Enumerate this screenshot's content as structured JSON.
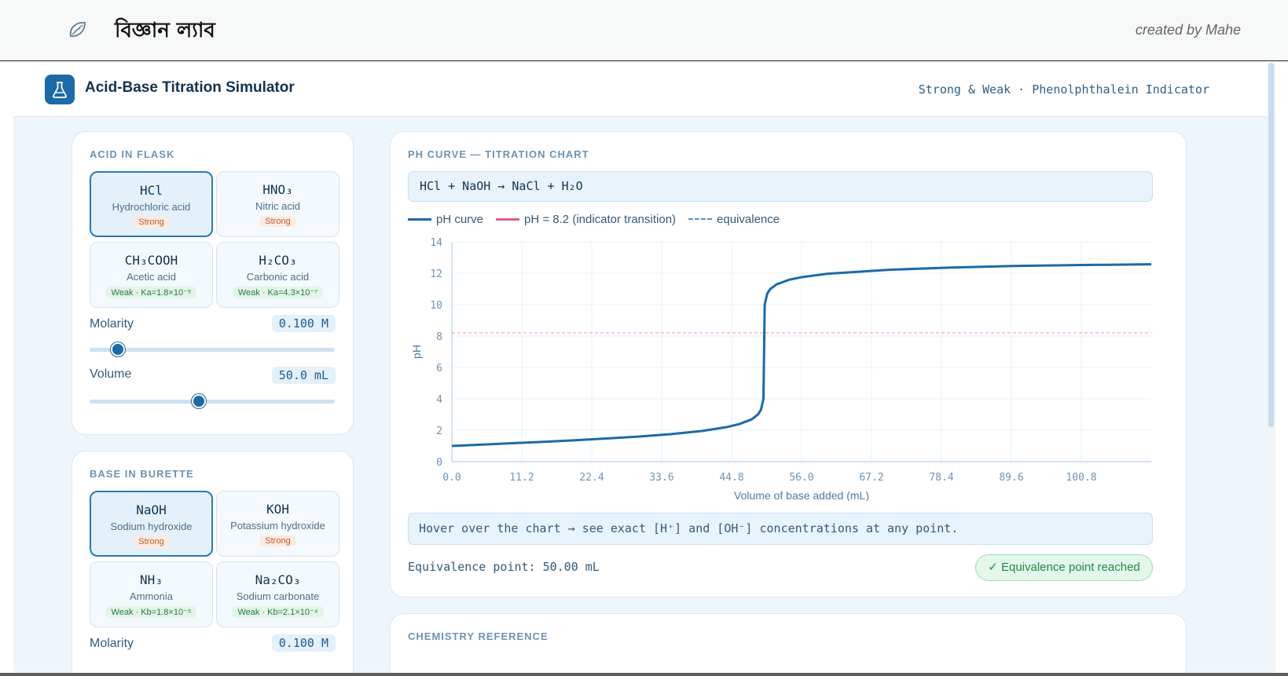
{
  "site": {
    "title": "বিজ্ঞান ল্যাব",
    "credit": "created by Mahe",
    "logo_icon": "leaf-swirl-icon"
  },
  "app": {
    "title": "Acid-Base Titration Simulator",
    "subtitle": "Strong & Weak · Phenolphthalein Indicator",
    "icon": "flask-icon",
    "accent": "#1d6aa6"
  },
  "acid_panel": {
    "label": "ACID IN FLASK",
    "options": [
      {
        "formula": "HCl",
        "name": "Hydrochloric acid",
        "badge": "Strong",
        "strength": "strong",
        "selected": true
      },
      {
        "formula": "HNO₃",
        "name": "Nitric acid",
        "badge": "Strong",
        "strength": "strong",
        "selected": false
      },
      {
        "formula": "CH₃COOH",
        "name": "Acetic acid",
        "badge": "Weak · Ka=1.8×10⁻⁵",
        "strength": "weak",
        "selected": false
      },
      {
        "formula": "H₂CO₃",
        "name": "Carbonic acid",
        "badge": "Weak · Ka=4.3×10⁻⁷",
        "strength": "weak",
        "selected": false
      }
    ],
    "molarity": {
      "label": "Molarity",
      "value": "0.100 M",
      "slider_fraction": 0.116
    },
    "volume": {
      "label": "Volume",
      "value": "50.0 mL",
      "slider_fraction": 0.445
    }
  },
  "base_panel": {
    "label": "BASE IN BURETTE",
    "options": [
      {
        "formula": "NaOH",
        "name": "Sodium hydroxide",
        "badge": "Strong",
        "strength": "strong",
        "selected": true
      },
      {
        "formula": "KOH",
        "name": "Potassium hydroxide",
        "badge": "Strong",
        "strength": "strong",
        "selected": false
      },
      {
        "formula": "NH₃",
        "name": "Ammonia",
        "badge": "Weak · Kb=1.8×10⁻⁵",
        "strength": "weak",
        "selected": false
      },
      {
        "formula": "Na₂CO₃",
        "name": "Sodium carbonate",
        "badge": "Weak · Kb=2.1×10⁻⁴",
        "strength": "weak",
        "selected": false
      }
    ],
    "molarity": {
      "label": "Molarity",
      "value": "0.100 M"
    }
  },
  "chart_panel": {
    "label": "PH CURVE — TITRATION CHART",
    "equation": "HCl + NaOH → NaCl + H₂O",
    "legend": [
      {
        "label": "pH curve",
        "color": "#1d6aa6",
        "style": "solid"
      },
      {
        "label": "pH = 8.2 (indicator transition)",
        "color": "#e45b86",
        "style": "solid"
      },
      {
        "label": "equivalence",
        "color": "#5b93c9",
        "style": "dashed"
      }
    ],
    "hint": "Hover over the chart → see exact [H⁺] and [OH⁻] concentrations at any point.",
    "equivalence_text": "Equivalence point: 50.00 mL",
    "equivalence_badge": "✓ Equivalence point reached"
  },
  "reference_panel": {
    "label": "CHEMISTRY REFERENCE"
  },
  "chart_data": {
    "type": "line",
    "xlabel": "Volume of base added (mL)",
    "ylabel": "pH",
    "xlim": [
      0,
      112
    ],
    "ylim": [
      0,
      14
    ],
    "xticks": [
      "0.0",
      "11.2",
      "22.4",
      "33.6",
      "44.8",
      "56.0",
      "67.2",
      "78.4",
      "89.6",
      "100.8"
    ],
    "yticks": [
      "0",
      "2",
      "4",
      "6",
      "8",
      "10",
      "12",
      "14"
    ],
    "indicator_ph": 8.2,
    "equivalence_ml": 50.0,
    "grid": true,
    "series": [
      {
        "name": "pH curve",
        "color": "#1d6aa6",
        "x": [
          0,
          5,
          10,
          15,
          20,
          25,
          30,
          35,
          40,
          44,
          46,
          48,
          49,
          49.5,
          49.9,
          50.0,
          50.1,
          50.5,
          51,
          52,
          54,
          56,
          60,
          70,
          80,
          90,
          100,
          112
        ],
        "y": [
          1.0,
          1.09,
          1.18,
          1.27,
          1.37,
          1.48,
          1.6,
          1.75,
          1.95,
          2.2,
          2.39,
          2.69,
          3.0,
          3.3,
          4.0,
          7.0,
          10.0,
          10.7,
          11.0,
          11.29,
          11.58,
          11.75,
          11.96,
          12.22,
          12.36,
          12.46,
          12.52,
          12.57
        ]
      }
    ]
  }
}
